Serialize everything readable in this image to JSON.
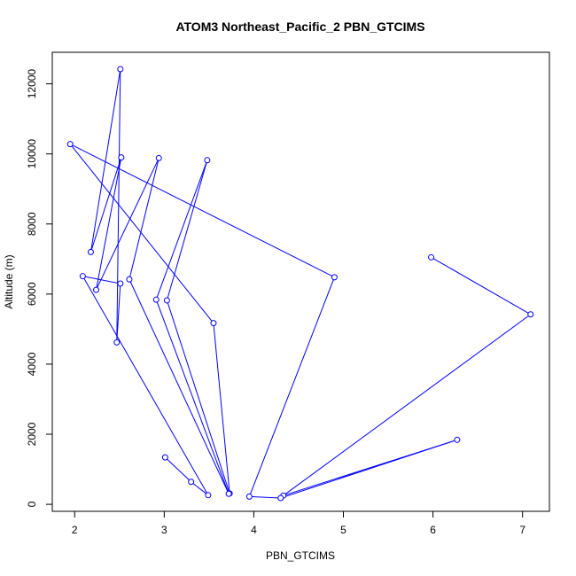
{
  "chart_data": {
    "type": "line",
    "title": "ATOM3 Northeast_Pacific_2 PBN_GTCIMS",
    "xlabel": "PBN_GTCIMS",
    "ylabel": "Altitude (m)",
    "xlim": [
      1.75,
      7.3
    ],
    "ylim": [
      -200,
      12900
    ],
    "xticks": [
      2,
      3,
      4,
      5,
      6,
      7
    ],
    "yticks": [
      0,
      2000,
      4000,
      6000,
      8000,
      10000,
      12000
    ],
    "series_color": "#0000ff",
    "series": [
      {
        "x": [
          5.98,
          7.09,
          4.33,
          6.27,
          4.3,
          3.95,
          4.9,
          1.95,
          3.55,
          3.73,
          3.03,
          3.48,
          2.91,
          3.72,
          2.61,
          2.94,
          2.24,
          2.52,
          2.18,
          2.51,
          2.47,
          2.51,
          2.09,
          3.49,
          3.3,
          3.01
        ],
        "y": [
          7050,
          5420,
          250,
          1840,
          180,
          220,
          6480,
          10280,
          5170,
          310,
          5820,
          9820,
          5840,
          300,
          6420,
          9880,
          6120,
          9900,
          7200,
          12420,
          4620,
          6300,
          6510,
          260,
          640,
          1340
        ],
        "marker": "open-circle"
      }
    ]
  },
  "colors": {
    "series": "#0000ff",
    "axis": "#000000",
    "background": "#ffffff"
  }
}
